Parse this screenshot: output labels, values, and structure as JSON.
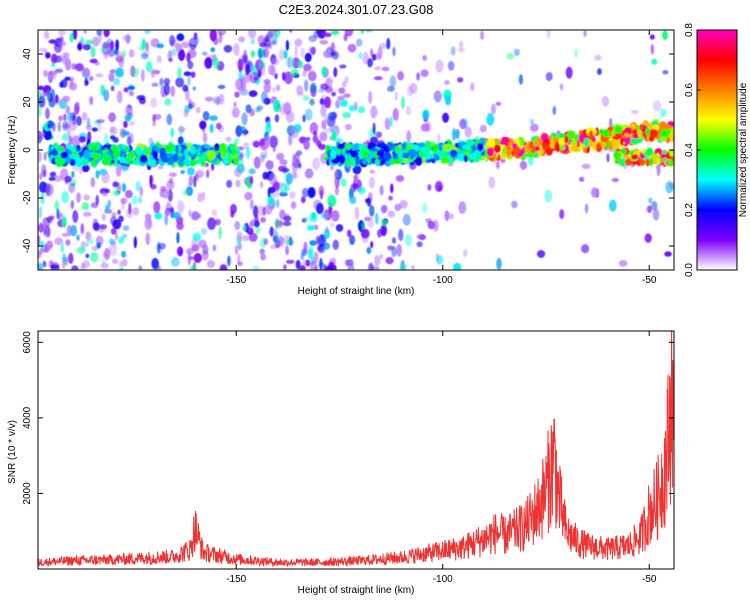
{
  "title": "C2E3.2024.301.07.23.G08",
  "colors": {
    "series": "#ee3333",
    "axis": "#000000"
  },
  "chart_data": [
    {
      "type": "heatmap",
      "name": "spectrogram",
      "xlabel": "Height of straight line (km)",
      "ylabel": "Frequency (Hz)",
      "xlim": [
        -198,
        -44
      ],
      "ylim": [
        -50,
        50
      ],
      "xticks": [
        -150,
        -100,
        -50
      ],
      "yticks": [
        -40,
        -20,
        0,
        20,
        40
      ],
      "colorbar": {
        "label": "Normalized spectral amplitude",
        "range": [
          0,
          0.8
        ],
        "ticks": [
          0.0,
          0.2,
          0.4,
          0.6,
          0.8
        ],
        "tick_labels": [
          "0.0",
          "0.2",
          "0.4",
          "0.6",
          "0.8"
        ],
        "colors": [
          "#ffffff",
          "#8000ff",
          "#0000ff",
          "#00ffff",
          "#00ff00",
          "#ffff00",
          "#ff8000",
          "#ff0000",
          "#ff00c0"
        ]
      },
      "signal_track": [
        {
          "x": -195,
          "y": -2
        },
        {
          "x": -150,
          "y": -2
        },
        {
          "x": -120,
          "y": -2
        },
        {
          "x": -100,
          "y": -1
        },
        {
          "x": -80,
          "y": 1
        },
        {
          "x": -60,
          "y": 5
        },
        {
          "x": -50,
          "y": 8
        },
        {
          "x": -44,
          "y": 8
        }
      ],
      "secondary_track": [
        {
          "x": -58,
          "y": -3
        },
        {
          "x": -44,
          "y": -3
        }
      ]
    },
    {
      "type": "line",
      "name": "snr",
      "xlabel": "Height of straight line (km)",
      "ylabel": "SNR (10 * v/v)",
      "xlim": [
        -198,
        -44
      ],
      "ylim": [
        0,
        6300
      ],
      "xticks": [
        -150,
        -100,
        -50
      ],
      "yticks": [
        2000,
        4000,
        6000
      ],
      "grid": false,
      "series": [
        {
          "x": [
            -198,
            -190,
            -180,
            -170,
            -165,
            -161,
            -160,
            -158,
            -150,
            -140,
            -130,
            -120,
            -110,
            -100,
            -95,
            -90,
            -87,
            -85,
            -80,
            -77,
            -75,
            -73,
            -72,
            -70,
            -67,
            -65,
            -60,
            -55,
            -52,
            -50,
            -48,
            -46,
            -45,
            -44.5,
            -44
          ],
          "y": [
            200,
            250,
            280,
            350,
            380,
            600,
            1250,
            500,
            300,
            200,
            200,
            250,
            350,
            550,
            650,
            900,
            1100,
            1000,
            1300,
            1800,
            2400,
            3400,
            2200,
            1100,
            800,
            700,
            600,
            700,
            1000,
            1700,
            2100,
            3200,
            4300,
            6200,
            3000
          ]
        }
      ]
    }
  ]
}
